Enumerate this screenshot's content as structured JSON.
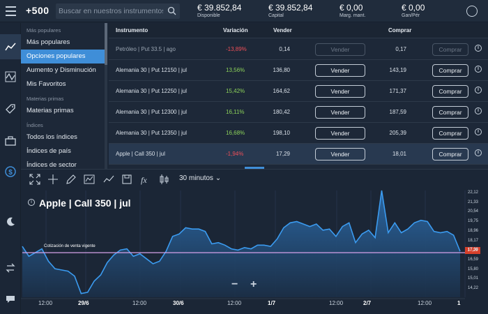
{
  "header": {
    "logo": "+500",
    "search_placeholder": "Buscar en nuestros instrumentos",
    "stats": [
      {
        "value": "€ 39.852,84",
        "label": "Disponible"
      },
      {
        "value": "€ 39.852,84",
        "label": "Capital"
      },
      {
        "value": "€ 0,00",
        "label": "Marg. mant."
      },
      {
        "value": "€ 0,00",
        "label": "Gan/Pér"
      }
    ]
  },
  "rail_icons": [
    "chart-icon",
    "trades-icon",
    "tag-icon",
    "briefcase-icon",
    "dollar-icon"
  ],
  "sidebar": {
    "sections": [
      {
        "title": "Más populares",
        "items": [
          "Más populares",
          "Opciones populares",
          "Aumento y Disminución",
          "Mis Favoritos"
        ]
      },
      {
        "title": "Materias primas",
        "items": [
          "Materias primas"
        ]
      },
      {
        "title": "Índices",
        "items": [
          "Todos los índices",
          "Índices de país",
          "Índices de sector"
        ]
      }
    ],
    "active": "Opciones populares"
  },
  "table": {
    "headers": {
      "instrument": "Instrumento",
      "change": "Variación",
      "sell": "Vender",
      "buy": "Comprar"
    },
    "rows": [
      {
        "instrument": "Petróleo | Put 33.5 | ago",
        "change": "-13,89%",
        "sell": "0,14",
        "sell_btn": "Vender",
        "buy": "0,17",
        "buy_btn": "Comprar",
        "disabled": true
      },
      {
        "instrument": "Alemania 30 | Put 12150 | jul",
        "change": "13,56%",
        "sell": "136,80",
        "sell_btn": "Vender",
        "buy": "143,19",
        "buy_btn": "Comprar",
        "disabled": false
      },
      {
        "instrument": "Alemania 30 | Put 12250 | jul",
        "change": "15,42%",
        "sell": "164,62",
        "sell_btn": "Vender",
        "buy": "171,37",
        "buy_btn": "Comprar",
        "disabled": false
      },
      {
        "instrument": "Alemania 30 | Put 12300 | jul",
        "change": "16,11%",
        "sell": "180,42",
        "sell_btn": "Vender",
        "buy": "187,59",
        "buy_btn": "Comprar",
        "disabled": false
      },
      {
        "instrument": "Alemania 30 | Put 12350 | jul",
        "change": "16,68%",
        "sell": "198,10",
        "sell_btn": "Vender",
        "buy": "205,39",
        "buy_btn": "Comprar",
        "disabled": false
      },
      {
        "instrument": "Apple | Call 350 | jul",
        "change": "-1,94%",
        "sell": "17,29",
        "sell_btn": "Vender",
        "buy": "18,01",
        "buy_btn": "Comprar",
        "disabled": false,
        "highlighted": true
      }
    ]
  },
  "chart": {
    "timeframe": "30 minutos ⌄",
    "title": "Apple | Call 350 | jul",
    "price_line_label": "Cotización de venta vigente",
    "current_price": "17,29",
    "zoom_out": "−",
    "zoom_in": "+",
    "tools": [
      "fullscreen-icon",
      "crosshair-icon",
      "pencil-icon",
      "indicator-icon",
      "trendline-icon",
      "save-icon",
      "function-icon",
      "candlestick-icon"
    ]
  },
  "chart_data": {
    "type": "area",
    "title": "Apple | Call 350 | jul",
    "yticks": [
      "22,12",
      "21,33",
      "20,54",
      "19,75",
      "18,96",
      "18,17",
      "17,38",
      "16,59",
      "15,80",
      "15,01",
      "14,22"
    ],
    "xticks": [
      {
        "label": "12:00",
        "bold": false
      },
      {
        "label": "29/6",
        "bold": true
      },
      {
        "label": "12:00",
        "bold": false
      },
      {
        "label": "30/6",
        "bold": true
      },
      {
        "label": "12:00",
        "bold": false
      },
      {
        "label": "1/7",
        "bold": true
      },
      {
        "label": "12:00",
        "bold": false
      },
      {
        "label": "2/7",
        "bold": true
      },
      {
        "label": "12:00",
        "bold": false
      },
      {
        "label": "1",
        "bold": true
      }
    ],
    "current_price": 17.29,
    "ylim": [
      13.7,
      22.3
    ],
    "values": [
      17.8,
      17.0,
      17.3,
      17.6,
      16.6,
      16.0,
      15.9,
      15.8,
      15.4,
      14.0,
      14.1,
      15.0,
      15.5,
      16.5,
      17.1,
      17.5,
      17.6,
      17.0,
      17.2,
      16.8,
      16.4,
      16.6,
      17.4,
      18.6,
      18.8,
      19.3,
      19.2,
      19.2,
      19.0,
      18.0,
      18.1,
      17.9,
      17.6,
      17.5,
      17.7,
      17.6,
      17.9,
      17.9,
      17.8,
      18.4,
      19.3,
      19.7,
      19.8,
      19.6,
      19.4,
      19.6,
      19.1,
      19.2,
      18.6,
      19.4,
      19.7,
      18.1,
      18.8,
      19.1,
      18.5,
      22.3,
      18.9,
      19.7,
      18.9,
      19.2,
      19.7,
      19.9,
      19.8,
      19.0,
      18.9,
      19.0,
      18.7,
      17.4
    ]
  }
}
